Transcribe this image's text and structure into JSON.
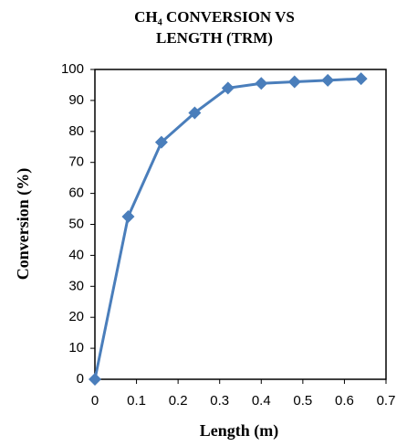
{
  "chart_data": {
    "type": "line",
    "title": [
      "CH₄ CONVERSION VS",
      "LENGTH (TRM)"
    ],
    "x_label": "Length (m)",
    "y_label": "Conversion (%)",
    "x": [
      0,
      0.08,
      0.16,
      0.24,
      0.32,
      0.4,
      0.48,
      0.56,
      0.64
    ],
    "series": [
      {
        "name": "Conversion",
        "color": "#4a7ebb",
        "values": [
          0,
          52.5,
          76.5,
          86,
          94,
          95.5,
          96,
          96.5,
          97
        ]
      }
    ],
    "xlim": [
      0,
      0.7
    ],
    "xticks": [
      0,
      0.1,
      0.2,
      0.3,
      0.4,
      0.5,
      0.6,
      0.7
    ],
    "ylim": [
      0,
      100
    ],
    "yticks": [
      0,
      10,
      20,
      30,
      40,
      50,
      60,
      70,
      80,
      90,
      100
    ],
    "marker": "diamond"
  }
}
